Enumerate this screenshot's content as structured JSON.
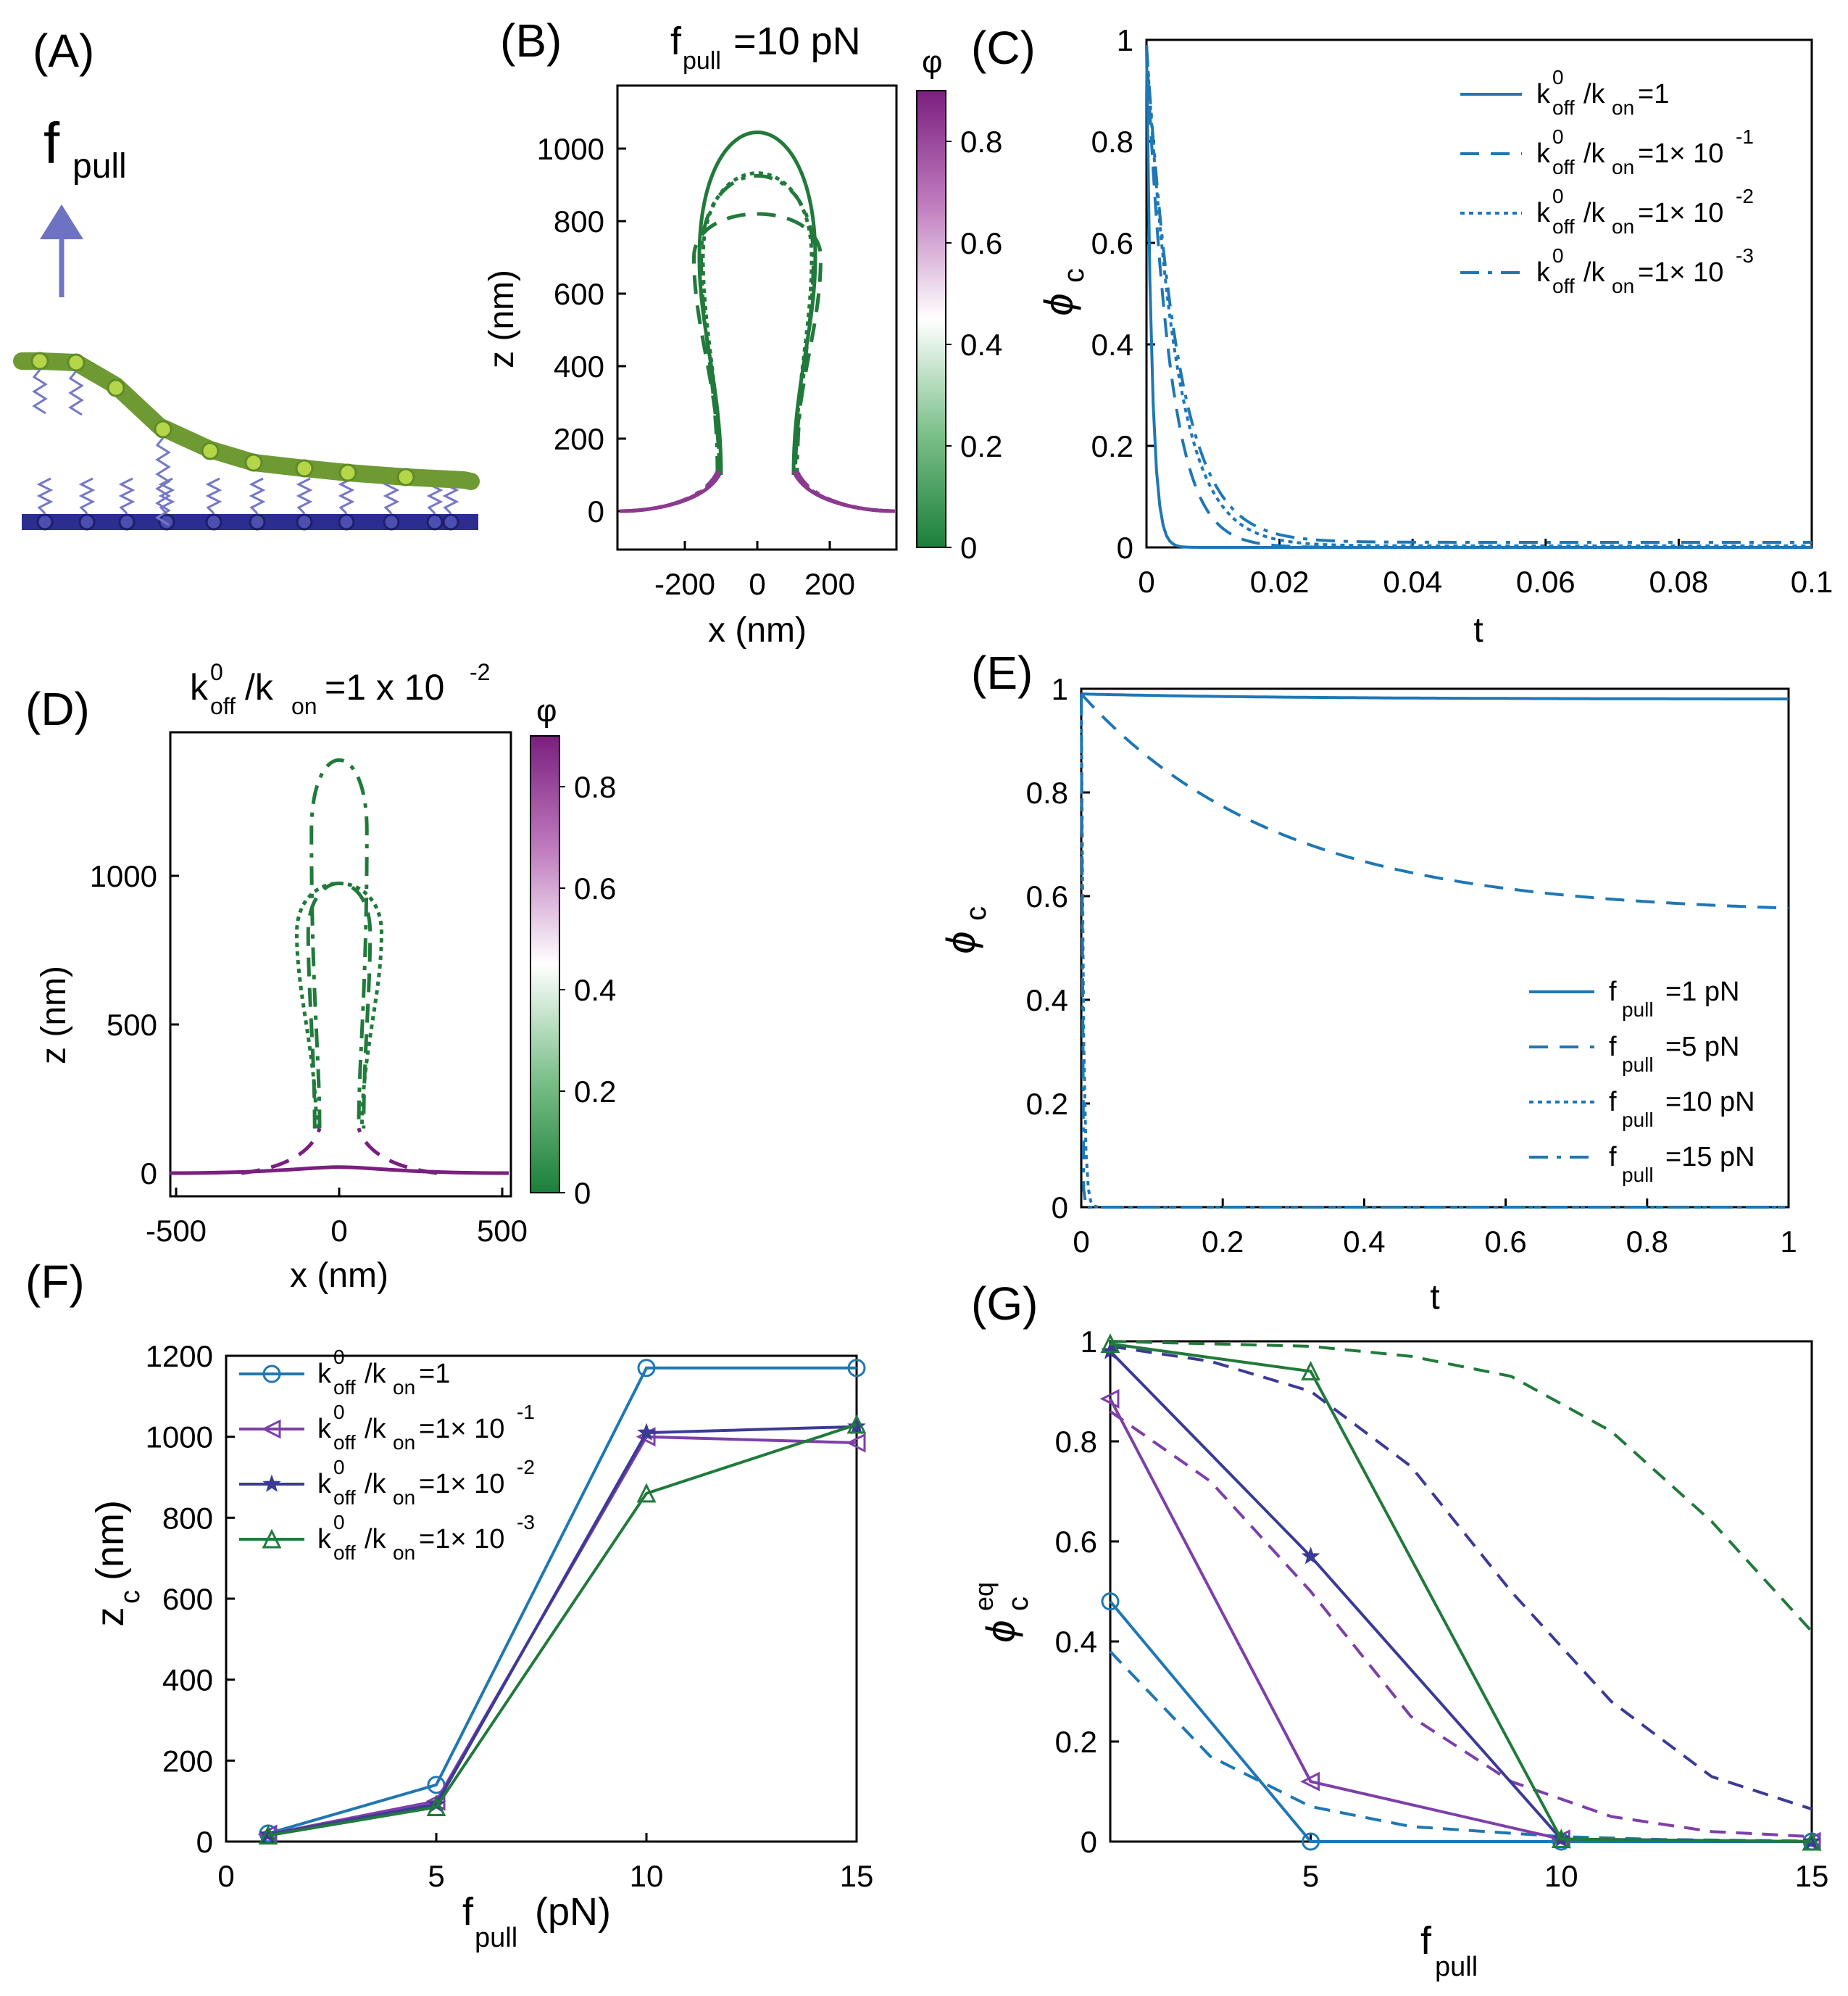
{
  "panels": {
    "A": {
      "label": "(A)",
      "force_label": "f",
      "force_sub": "pull"
    },
    "B": {
      "label": "(B)",
      "title": "f",
      "title_sub": "pull",
      "title_rest": "=10 pN",
      "xlabel": "x (nm)",
      "ylabel": "z (nm)",
      "xticks": [
        "-200",
        "0",
        "200"
      ],
      "yticks": [
        "0",
        "200",
        "400",
        "600",
        "800",
        "1000"
      ],
      "cbar_label": "φ",
      "cbar_ticks": [
        "0",
        "0.2",
        "0.4",
        "0.6",
        "0.8"
      ]
    },
    "C": {
      "label": "(C)"
    },
    "D": {
      "label": "(D)",
      "title_a": "k",
      "title_sup0": "0",
      "title_sub_off": "off",
      "title_slash": "/k",
      "title_sub_on": "on",
      "title_rest": "=1 x 10",
      "title_exp": "-2",
      "xlabel": "x (nm)",
      "ylabel": "z (nm)",
      "xticks": [
        "-500",
        "0",
        "500"
      ],
      "yticks": [
        "0",
        "500",
        "1000"
      ],
      "cbar_label": "φ",
      "cbar_ticks": [
        "0",
        "0.2",
        "0.4",
        "0.6",
        "0.8"
      ]
    },
    "E": {
      "label": "(E)"
    },
    "F": {
      "label": "(F)"
    },
    "G": {
      "label": "(G)"
    }
  },
  "legend_k": [
    {
      "k": "k",
      "sup": "0",
      "off": "off",
      "on": "on",
      "rest": "=1",
      "exp": ""
    },
    {
      "k": "k",
      "sup": "0",
      "off": "off",
      "on": "on",
      "rest": "=1× 10",
      "exp": "-1"
    },
    {
      "k": "k",
      "sup": "0",
      "off": "off",
      "on": "on",
      "rest": "=1× 10",
      "exp": "-2"
    },
    {
      "k": "k",
      "sup": "0",
      "off": "off",
      "on": "on",
      "rest": "=1× 10",
      "exp": "-3"
    }
  ],
  "legend_f": [
    {
      "f": "f",
      "sub": "pull",
      "rest": "=1 pN"
    },
    {
      "f": "f",
      "sub": "pull",
      "rest": "=5 pN"
    },
    {
      "f": "f",
      "sub": "pull",
      "rest": "=10 pN"
    },
    {
      "f": "f",
      "sub": "pull",
      "rest": "=15 pN"
    }
  ],
  "colors": {
    "blue": "#1f77b4",
    "purple": "#7e3fa8",
    "navy": "#3b3b96",
    "green": "#217a3b"
  },
  "chart_data": [
    {
      "panel": "C",
      "type": "line",
      "xlabel": "t",
      "ylabel": "φ_c",
      "xlim": [
        0,
        0.1
      ],
      "ylim": [
        0,
        1
      ],
      "xticks": [
        "0",
        "0.02",
        "0.04",
        "0.06",
        "0.08",
        "0.1"
      ],
      "yticks": [
        "0",
        "0.2",
        "0.4",
        "0.6",
        "0.8",
        "1"
      ],
      "series": [
        {
          "name": "k0off/kon=1",
          "tau": 0.0008,
          "floor": 0.0
        },
        {
          "name": "k0off/kon=1×10^-1",
          "tau": 0.0035,
          "floor": 0.0
        },
        {
          "name": "k0off/kon=1×10^-2",
          "tau": 0.0045,
          "floor": 0.003
        },
        {
          "name": "k0off/kon=1×10^-3",
          "tau": 0.0048,
          "floor": 0.01
        }
      ]
    },
    {
      "panel": "E",
      "type": "line",
      "xlabel": "t",
      "ylabel": "φ_c",
      "xlim": [
        0,
        1
      ],
      "ylim": [
        0,
        1
      ],
      "xticks": [
        "0",
        "0.2",
        "0.4",
        "0.6",
        "0.8",
        "1"
      ],
      "yticks": [
        "0",
        "0.2",
        "0.4",
        "0.6",
        "0.8",
        "1"
      ],
      "series": [
        {
          "name": "fpull=1 pN",
          "start": 0.99,
          "end": 0.98,
          "tau": 0.3
        },
        {
          "name": "fpull=5 pN",
          "start": 0.99,
          "end": 0.565,
          "tau": 0.28
        },
        {
          "name": "fpull=10 pN",
          "start": 0.99,
          "end": 0.0,
          "tau": 0.003
        },
        {
          "name": "fpull=15 pN",
          "start": 0.99,
          "end": 0.0,
          "tau": 0.001
        }
      ]
    },
    {
      "panel": "F",
      "type": "line",
      "xlabel": "f_pull (pN)",
      "ylabel": "z_c (nm)",
      "xlim": [
        0,
        15
      ],
      "ylim": [
        0,
        1200
      ],
      "xticks": [
        "0",
        "5",
        "10",
        "15"
      ],
      "yticks": [
        "0",
        "200",
        "400",
        "600",
        "800",
        "1000",
        "1200"
      ],
      "x": [
        1,
        5,
        10,
        15
      ],
      "series": [
        {
          "name": "k0off/kon=1",
          "values": [
            20,
            140,
            1170,
            1170
          ],
          "marker": "circle"
        },
        {
          "name": "k0off/kon=1×10^-1",
          "values": [
            18,
            100,
            1000,
            985
          ],
          "marker": "triangle-left"
        },
        {
          "name": "k0off/kon=1×10^-2",
          "values": [
            17,
            92,
            1010,
            1025
          ],
          "marker": "star"
        },
        {
          "name": "k0off/kon=1×10^-3",
          "values": [
            15,
            85,
            860,
            1030
          ],
          "marker": "triangle-up"
        }
      ]
    },
    {
      "panel": "G",
      "type": "line",
      "xlabel": "f_pull",
      "ylabel": "φ_c^eq",
      "xlim": [
        1,
        15
      ],
      "ylim": [
        0,
        1
      ],
      "xticks": [
        "5",
        "10",
        "15"
      ],
      "yticks": [
        "0",
        "0.2",
        "0.4",
        "0.6",
        "0.8",
        "1"
      ],
      "x": [
        1,
        5,
        10,
        15
      ],
      "series": [
        {
          "name": "k0off/kon=1 (sim)",
          "values": [
            0.48,
            0.0,
            0.0,
            0.0
          ],
          "marker": "circle"
        },
        {
          "name": "k0off/kon=1×10^-1 (sim)",
          "values": [
            0.885,
            0.12,
            0.005,
            0.0
          ],
          "marker": "triangle-left"
        },
        {
          "name": "k0off/kon=1×10^-2 (sim)",
          "values": [
            0.98,
            0.57,
            0.005,
            0.0
          ],
          "marker": "star"
        },
        {
          "name": "k0off/kon=1×10^-3 (sim)",
          "values": [
            0.995,
            0.94,
            0.005,
            0.0
          ],
          "marker": "triangle-up"
        }
      ],
      "theory": [
        {
          "name": "k0off/kon=1 (theory)",
          "x": [
            1,
            3,
            5,
            7,
            10,
            12,
            15
          ],
          "values": [
            0.38,
            0.17,
            0.07,
            0.03,
            0.01,
            0.004,
            0.001
          ]
        },
        {
          "name": "k0off/kon=1×10^-1 (theory)",
          "x": [
            1,
            3,
            5,
            7,
            9,
            11,
            13,
            15
          ],
          "values": [
            0.86,
            0.72,
            0.5,
            0.25,
            0.12,
            0.05,
            0.02,
            0.01
          ]
        },
        {
          "name": "k0off/kon=1×10^-2 (theory)",
          "x": [
            1,
            3,
            5,
            7,
            9,
            11,
            13,
            15
          ],
          "values": [
            0.99,
            0.96,
            0.9,
            0.75,
            0.5,
            0.28,
            0.13,
            0.065
          ]
        },
        {
          "name": "k0off/kon=1×10^-3 (theory)",
          "x": [
            1,
            3,
            5,
            7,
            9,
            11,
            13,
            15
          ],
          "values": [
            1.0,
            0.995,
            0.99,
            0.97,
            0.93,
            0.82,
            0.64,
            0.42
          ]
        }
      ]
    }
  ]
}
